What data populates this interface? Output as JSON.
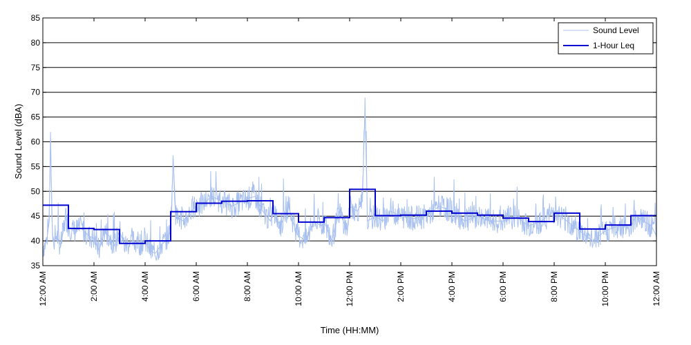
{
  "chart_data": {
    "type": "line",
    "xlabel": "Time (HH:MM)",
    "ylabel": "Sound Level (dBA)",
    "ylim": [
      35,
      85
    ],
    "y_ticks": [
      35,
      40,
      45,
      50,
      55,
      60,
      65,
      70,
      75,
      80,
      85
    ],
    "xlim_hours": [
      0,
      24
    ],
    "x_tick_hours": [
      0,
      2,
      4,
      6,
      8,
      10,
      12,
      14,
      16,
      18,
      20,
      22,
      24
    ],
    "x_tick_labels": [
      "12:00 AM",
      "2:00 AM",
      "4:00 AM",
      "6:00 AM",
      "8:00 AM",
      "10:00 AM",
      "12:00 PM",
      "2:00 PM",
      "4:00 PM",
      "6:00 PM",
      "8:00 PM",
      "10:00 PM",
      "12:00 AM"
    ],
    "grid": "horizontal",
    "legend_position": "top-right",
    "series": [
      {
        "name": "Sound Level",
        "color": "#a8c0f0",
        "points_hours": [
          0.0,
          0.15,
          0.25,
          0.3,
          0.35,
          0.4,
          0.55,
          0.7,
          0.9,
          1.0,
          1.2,
          1.5,
          1.8,
          2.0,
          2.2,
          2.4,
          2.6,
          2.8,
          3.0,
          3.2,
          3.5,
          3.8,
          4.0,
          4.2,
          4.4,
          4.6,
          4.8,
          5.0,
          5.1,
          5.2,
          5.5,
          5.8,
          6.0,
          6.3,
          6.6,
          7.0,
          7.4,
          7.8,
          8.0,
          8.3,
          8.6,
          8.9,
          9.0,
          9.3,
          9.6,
          9.9,
          10.0,
          10.3,
          10.6,
          10.9,
          11.0,
          11.3,
          11.6,
          11.9,
          12.0,
          12.3,
          12.5,
          12.6,
          12.7,
          13.0,
          13.3,
          13.6,
          14.0,
          14.5,
          15.0,
          15.5,
          16.0,
          16.5,
          17.0,
          17.5,
          18.0,
          18.5,
          19.0,
          19.5,
          20.0,
          20.5,
          21.0,
          21.5,
          22.0,
          22.5,
          23.0,
          23.2,
          23.5,
          23.8,
          24.0
        ],
        "values": [
          38.5,
          40.0,
          44.0,
          62.0,
          45.0,
          40.0,
          41.0,
          39.0,
          45.0,
          43.0,
          42.0,
          42.5,
          41.0,
          40.5,
          38.0,
          42.0,
          41.0,
          39.0,
          42.0,
          39.0,
          40.0,
          39.5,
          40.0,
          38.0,
          37.5,
          39.0,
          40.0,
          42.0,
          56.5,
          45.0,
          44.0,
          46.0,
          47.0,
          47.5,
          49.0,
          48.0,
          47.0,
          48.0,
          48.5,
          49.0,
          46.0,
          44.0,
          46.0,
          43.0,
          47.0,
          42.0,
          41.0,
          40.0,
          44.0,
          43.0,
          44.0,
          40.0,
          46.0,
          42.0,
          47.0,
          46.0,
          48.0,
          67.0,
          44.0,
          45.0,
          44.0,
          46.0,
          45.0,
          44.5,
          45.0,
          47.0,
          46.0,
          44.0,
          45.0,
          44.0,
          44.0,
          45.0,
          43.0,
          44.0,
          46.0,
          44.0,
          42.0,
          40.0,
          42.0,
          43.0,
          43.0,
          45.0,
          44.0,
          43.0,
          41.0
        ]
      },
      {
        "name": "1-Hour Leq",
        "color": "#0000d0",
        "step_start_hours": [
          0,
          1,
          2,
          3,
          4,
          5,
          6,
          7,
          8,
          9,
          10,
          11,
          12,
          13,
          14,
          15,
          16,
          17,
          18,
          19,
          20,
          21,
          22,
          23
        ],
        "values": [
          47.2,
          42.5,
          42.3,
          39.5,
          40.0,
          45.9,
          47.6,
          48.0,
          48.1,
          45.5,
          43.8,
          44.7,
          50.4,
          45.1,
          45.2,
          46.0,
          45.6,
          45.2,
          44.6,
          43.9,
          45.6,
          42.4,
          43.2,
          45.1
        ]
      }
    ]
  }
}
